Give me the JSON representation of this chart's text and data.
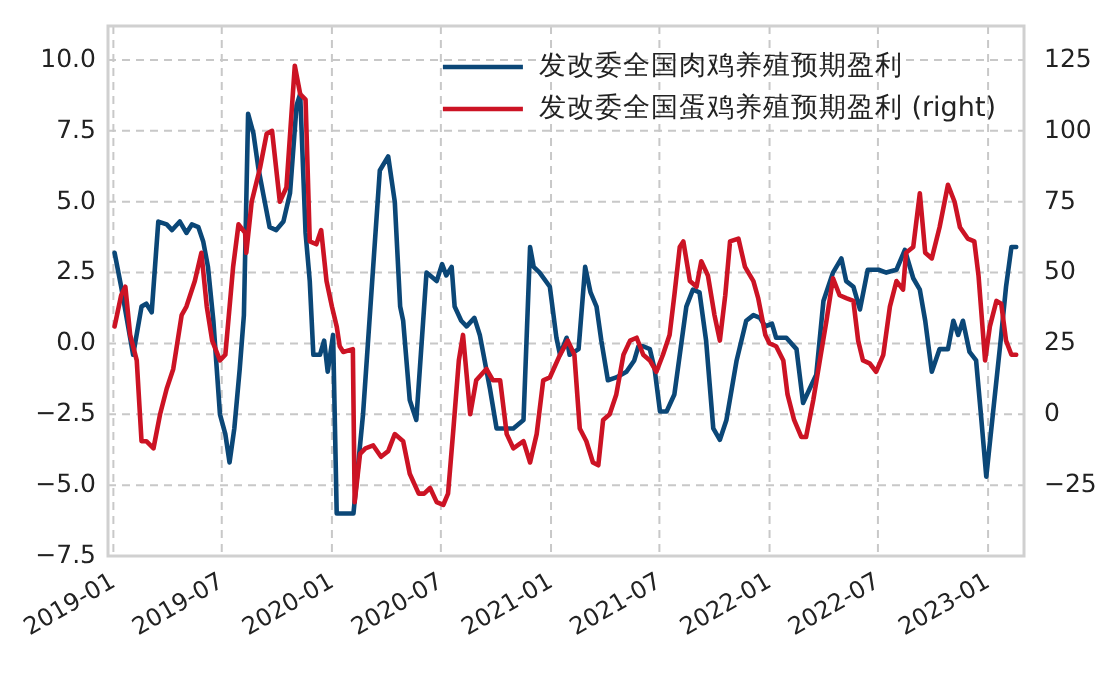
{
  "chart_data": {
    "type": "line",
    "xlim": [
      "2018-12-23",
      "2023-03-02"
    ],
    "xticks": [
      "2019-01",
      "2019-07",
      "2020-01",
      "2020-07",
      "2021-01",
      "2021-07",
      "2022-01",
      "2022-07",
      "2023-01"
    ],
    "ylim": [
      -7.5,
      11.2
    ],
    "yticks": [
      {
        "value": -7.5,
        "label": "−7.5"
      },
      {
        "value": -5,
        "label": "−5.0"
      },
      {
        "value": -2.5,
        "label": "−2.5"
      },
      {
        "value": 0,
        "label": "0.0"
      },
      2.5,
      {
        "value": 5,
        "label": "5.0"
      },
      7.5,
      {
        "value": 10,
        "label": "10.0"
      }
    ],
    "y2lim": [
      -50,
      137
    ],
    "y2ticks": [
      {
        "value": -25,
        "label": "−25"
      },
      0,
      25,
      50,
      75,
      100,
      125
    ],
    "grid": true,
    "legend": "top right",
    "line_style": "solid",
    "series": [
      {
        "name": "发改委全国肉鸡养殖预期盈利",
        "color": "#0b4777",
        "x": [
          "2019-01-03",
          "2019-01-14",
          "2019-02-03",
          "2019-02-17",
          "2019-02-25",
          "2019-03-06",
          "2019-03-17",
          "2019-03-31",
          "2019-04-09",
          "2019-04-22",
          "2019-05-03",
          "2019-05-12",
          "2019-05-23",
          "2019-05-31",
          "2019-06-08",
          "2019-06-17",
          "2019-06-28",
          "2019-07-07",
          "2019-07-14",
          "2019-07-22",
          "2019-07-31",
          "2019-08-07",
          "2019-08-14",
          "2019-08-23",
          "2019-08-31",
          "2019-09-09",
          "2019-09-19",
          "2019-09-30",
          "2019-10-12",
          "2019-10-23",
          "2019-11-03",
          "2019-11-09",
          "2019-11-18",
          "2019-11-25",
          "2019-12-01",
          "2019-12-12",
          "2019-12-19",
          "2019-12-25",
          "2020-01-03",
          "2020-01-09",
          "2020-02-06",
          "2020-02-22",
          "2020-03-21",
          "2020-04-04",
          "2020-04-15",
          "2020-04-24",
          "2020-04-29",
          "2020-05-10",
          "2020-05-21",
          "2020-06-07",
          "2020-06-24",
          "2020-07-03",
          "2020-07-10",
          "2020-07-19",
          "2020-07-24",
          "2020-08-04",
          "2020-08-13",
          "2020-08-26",
          "2020-09-04",
          "2020-09-21",
          "2020-10-02",
          "2020-10-30",
          "2020-11-16",
          "2020-11-27",
          "2020-12-03",
          "2020-12-13",
          "2020-12-30",
          "2021-01-10",
          "2021-01-16",
          "2021-01-27",
          "2021-02-01",
          "2021-02-16",
          "2021-02-27",
          "2021-03-08",
          "2021-03-18",
          "2021-03-26",
          "2021-04-06",
          "2021-04-20",
          "2021-05-07",
          "2021-05-20",
          "2021-05-27",
          "2021-06-04",
          "2021-06-15",
          "2021-06-23",
          "2021-07-02",
          "2021-07-13",
          "2021-07-26",
          "2021-08-15",
          "2021-08-26",
          "2021-09-06",
          "2021-09-17",
          "2021-09-29",
          "2021-10-10",
          "2021-10-21",
          "2021-11-07",
          "2021-11-23",
          "2021-12-05",
          "2021-12-16",
          "2021-12-25",
          "2022-01-05",
          "2022-01-12",
          "2022-01-29",
          "2022-02-15",
          "2022-02-26",
          "2022-03-09",
          "2022-03-20",
          "2022-04-01",
          "2022-04-17",
          "2022-05-01",
          "2022-05-09",
          "2022-05-21",
          "2022-06-01",
          "2022-06-14",
          "2022-07-02",
          "2022-07-15",
          "2022-08-01",
          "2022-08-15",
          "2022-08-29",
          "2022-09-09",
          "2022-09-18",
          "2022-09-29",
          "2022-10-12",
          "2022-10-26",
          "2022-11-04",
          "2022-11-12",
          "2022-11-20",
          "2022-12-01",
          "2022-12-12",
          "2022-12-20",
          "2022-12-29",
          "2023-01-09",
          "2023-01-23",
          "2023-01-31",
          "2023-02-09",
          "2023-02-17"
        ],
        "values": [
          3.2,
          2.0,
          -0.4,
          1.3,
          1.4,
          1.1,
          4.3,
          4.2,
          4.0,
          4.3,
          3.9,
          4.2,
          4.1,
          3.6,
          2.7,
          0.8,
          -2.5,
          -3.2,
          -4.2,
          -3.0,
          -0.9,
          1.0,
          8.1,
          7.4,
          6.2,
          5.2,
          4.1,
          4.0,
          4.3,
          5.3,
          8.4,
          8.8,
          3.9,
          2.2,
          -0.4,
          -0.4,
          0.1,
          -1.0,
          0.3,
          -6.0,
          -6.0,
          -2.5,
          6.1,
          6.6,
          5.0,
          1.3,
          0.8,
          -2.0,
          -2.7,
          2.5,
          2.2,
          2.8,
          2.4,
          2.7,
          1.3,
          0.8,
          0.6,
          0.9,
          0.3,
          -1.6,
          -3.0,
          -3.0,
          -2.7,
          3.4,
          2.7,
          2.5,
          2.0,
          0.2,
          -0.4,
          0.2,
          -0.4,
          -0.2,
          2.7,
          1.8,
          1.3,
          0.1,
          -1.3,
          -1.2,
          -1.0,
          -0.6,
          -0.1,
          -0.1,
          -0.2,
          -0.9,
          -2.4,
          -2.4,
          -1.8,
          1.3,
          1.9,
          1.8,
          0.1,
          -3.0,
          -3.4,
          -2.7,
          -0.6,
          0.8,
          1.0,
          0.9,
          0.6,
          0.7,
          0.2,
          0.2,
          -0.2,
          -2.1,
          -1.6,
          -1.1,
          1.5,
          2.5,
          3.0,
          2.2,
          2.0,
          1.2,
          2.6,
          2.6,
          2.5,
          2.6,
          3.3,
          2.3,
          1.9,
          0.8,
          -1.0,
          -0.2,
          -0.2,
          0.8,
          0.3,
          0.8,
          -0.3,
          -0.6,
          -2.5,
          -4.7,
          -2.5,
          0.3,
          2.0,
          3.4,
          3.4
        ]
      },
      {
        "name": "发改委全国蛋鸡养殖预期盈利 (right)",
        "color": "#cc1324",
        "axis": "y2",
        "x": [
          "2019-01-03",
          "2019-01-14",
          "2019-01-21",
          "2019-01-29",
          "2019-02-09",
          "2019-02-17",
          "2019-02-25",
          "2019-03-09",
          "2019-03-20",
          "2019-03-31",
          "2019-04-11",
          "2019-04-25",
          "2019-05-03",
          "2019-05-17",
          "2019-05-28",
          "2019-06-06",
          "2019-06-15",
          "2019-06-28",
          "2019-07-07",
          "2019-07-20",
          "2019-07-29",
          "2019-08-09",
          "2019-08-11",
          "2019-08-20",
          "2019-09-03",
          "2019-09-14",
          "2019-09-23",
          "2019-10-06",
          "2019-10-17",
          "2019-10-31",
          "2019-11-09",
          "2019-11-18",
          "2019-11-25",
          "2019-12-06",
          "2019-12-14",
          "2019-12-23",
          "2020-01-01",
          "2020-01-09",
          "2020-01-14",
          "2020-01-20",
          "2020-02-05",
          "2020-02-08",
          "2020-02-17",
          "2020-02-26",
          "2020-03-10",
          "2020-03-23",
          "2020-04-04",
          "2020-04-15",
          "2020-04-29",
          "2020-05-10",
          "2020-05-25",
          "2020-06-03",
          "2020-06-13",
          "2020-06-24",
          "2020-07-05",
          "2020-07-13",
          "2020-07-22",
          "2020-07-31",
          "2020-08-07",
          "2020-08-13",
          "2020-08-19",
          "2020-08-29",
          "2020-09-15",
          "2020-09-26",
          "2020-10-08",
          "2020-10-19",
          "2020-10-30",
          "2020-11-16",
          "2020-11-27",
          "2020-12-08",
          "2020-12-19",
          "2020-12-30",
          "2021-01-16",
          "2021-01-29",
          "2021-02-09",
          "2021-02-18",
          "2021-03-01",
          "2021-03-12",
          "2021-03-21",
          "2021-03-29",
          "2021-04-09",
          "2021-04-20",
          "2021-05-02",
          "2021-05-13",
          "2021-05-24",
          "2021-06-04",
          "2021-06-15",
          "2021-06-26",
          "2021-07-07",
          "2021-07-18",
          "2021-07-26",
          "2021-08-04",
          "2021-08-10",
          "2021-08-21",
          "2021-09-01",
          "2021-09-09",
          "2021-09-20",
          "2021-10-01",
          "2021-10-10",
          "2021-10-19",
          "2021-10-27",
          "2021-11-10",
          "2021-11-21",
          "2021-12-05",
          "2021-12-13",
          "2021-12-25",
          "2022-01-01",
          "2022-01-12",
          "2022-01-24",
          "2022-01-31",
          "2022-02-11",
          "2022-02-23",
          "2022-03-03",
          "2022-03-15",
          "2022-03-26",
          "2022-04-06",
          "2022-04-17",
          "2022-04-28",
          "2022-05-09",
          "2022-05-21",
          "2022-05-29",
          "2022-06-06",
          "2022-06-17",
          "2022-06-28",
          "2022-07-10",
          "2022-07-21",
          "2022-08-01",
          "2022-08-12",
          "2022-08-17",
          "2022-08-29",
          "2022-09-09",
          "2022-09-18",
          "2022-09-29",
          "2022-10-12",
          "2022-10-26",
          "2022-11-06",
          "2022-11-15",
          "2022-11-28",
          "2022-12-09",
          "2022-12-16",
          "2022-12-27",
          "2023-01-04",
          "2023-01-15",
          "2023-01-23",
          "2023-01-31",
          "2023-02-09",
          "2023-02-17"
        ],
        "values": [
          31,
          42,
          45,
          28,
          19,
          -9.5,
          -9.5,
          -12,
          0,
          9,
          16,
          35,
          38,
          47,
          57,
          38,
          26,
          19,
          21,
          52,
          67,
          64,
          57,
          75,
          87,
          99,
          100,
          75,
          80,
          123,
          113,
          111,
          61,
          60,
          65,
          47,
          38,
          31,
          24,
          22,
          23,
          -31,
          -14,
          -12,
          -11,
          -15,
          -13,
          -7,
          -9.5,
          -21,
          -28,
          -28,
          -26,
          -31,
          -32,
          -28,
          -5,
          19,
          28,
          14,
          0,
          12,
          16,
          12,
          12,
          -7,
          -12,
          -9.5,
          -17,
          -7,
          12,
          13,
          21,
          26,
          21,
          -5,
          -9.5,
          -17,
          -18,
          -2,
          0,
          7,
          21,
          26,
          27,
          21,
          19,
          15,
          21,
          28,
          42,
          59,
          61,
          47,
          45,
          54,
          49,
          35,
          26,
          42,
          61,
          62,
          52,
          47,
          41,
          28,
          25,
          24,
          19,
          7,
          -2,
          -8,
          -8,
          5,
          19,
          33,
          48,
          42,
          41,
          40,
          26,
          19,
          18,
          15,
          21,
          38,
          47,
          44,
          57,
          59,
          78,
          57,
          55,
          66,
          81,
          75,
          66,
          62,
          61,
          49,
          19,
          31,
          40,
          39,
          26,
          21,
          21
        ]
      }
    ]
  }
}
